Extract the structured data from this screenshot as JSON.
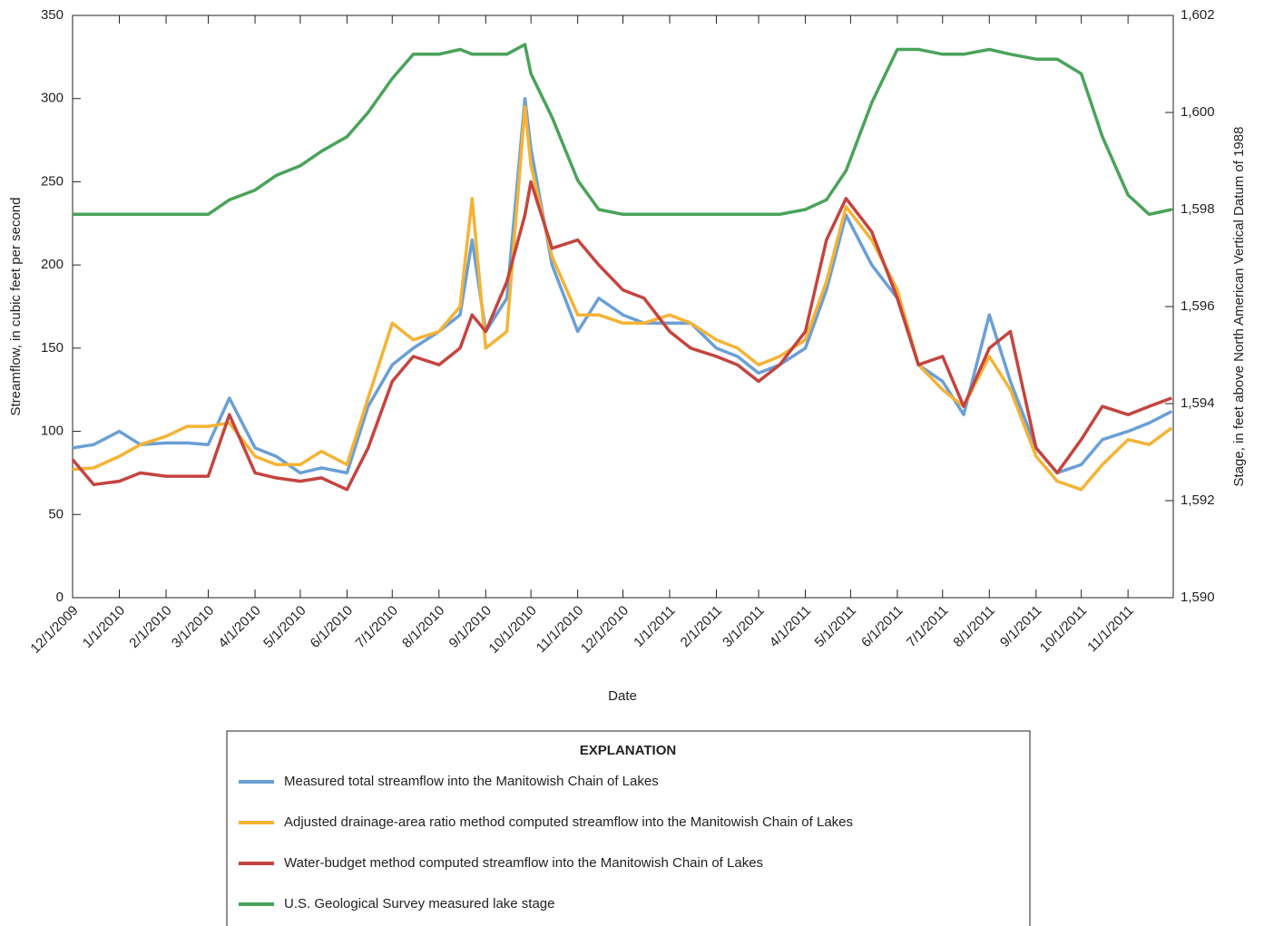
{
  "chart_data": {
    "type": "line",
    "xlabel": "Date",
    "ylabel": "Streamflow, in cubic feet per second",
    "y2label": "Stage, in feet above North American Vertical Datum of 1988",
    "legend_title": "EXPLANATION",
    "legend": "bottom",
    "x": [
      "12/1/2009",
      "12/15/2009",
      "1/1/2010",
      "1/15/2010",
      "2/1/2010",
      "2/15/2010",
      "3/1/2010",
      "3/15/2010",
      "4/1/2010",
      "4/15/2010",
      "5/1/2010",
      "5/15/2010",
      "6/1/2010",
      "6/15/2010",
      "7/1/2010",
      "7/15/2010",
      "8/1/2010",
      "8/15/2010",
      "8/23/2010",
      "9/1/2010",
      "9/15/2010",
      "9/27/2010",
      "10/1/2010",
      "10/15/2010",
      "11/1/2010",
      "11/15/2010",
      "12/1/2010",
      "12/15/2010",
      "1/1/2011",
      "1/15/2011",
      "2/1/2011",
      "2/15/2011",
      "3/1/2011",
      "3/15/2011",
      "4/1/2011",
      "4/15/2011",
      "4/28/2011",
      "5/15/2011",
      "6/1/2011",
      "6/15/2011",
      "7/1/2011",
      "7/15/2011",
      "8/1/2011",
      "8/15/2011",
      "9/1/2011",
      "9/15/2011",
      "10/1/2011",
      "10/15/2011",
      "11/1/2011",
      "11/15/2011",
      "11/30/2011"
    ],
    "xlim": [
      "12/1/2009",
      "12/1/2011"
    ],
    "xticks": [
      "12/1/2009",
      "1/1/2010",
      "2/1/2010",
      "3/1/2010",
      "4/1/2010",
      "5/1/2010",
      "6/1/2010",
      "7/1/2010",
      "8/1/2010",
      "9/1/2010",
      "10/1/2010",
      "11/1/2010",
      "12/1/2010",
      "1/1/2011",
      "2/1/2011",
      "3/1/2011",
      "4/1/2011",
      "5/1/2011",
      "6/1/2011",
      "7/1/2011",
      "8/1/2011",
      "9/1/2011",
      "10/1/2011",
      "11/1/2011"
    ],
    "ylim": [
      0,
      350
    ],
    "yticks": [
      0,
      50,
      100,
      150,
      200,
      250,
      300,
      350
    ],
    "y2lim": [
      1590,
      1602
    ],
    "y2ticks": [
      {
        "value": 1590,
        "label": "1,590"
      },
      {
        "value": 1592,
        "label": "1,592"
      },
      {
        "value": 1594,
        "label": "1,594"
      },
      {
        "value": 1596,
        "label": "1,596"
      },
      {
        "value": 1598,
        "label": "1,598"
      },
      {
        "value": 1600,
        "label": "1,600"
      },
      {
        "value": 1602,
        "label": "1,602"
      }
    ],
    "series": [
      {
        "name": "Measured total streamflow into the Manitowish Chain of Lakes",
        "color": "#6b9fd6",
        "values": [
          90,
          92,
          100,
          92,
          93,
          93,
          92,
          120,
          90,
          85,
          75,
          78,
          75,
          115,
          140,
          150,
          160,
          170,
          215,
          160,
          180,
          300,
          270,
          200,
          160,
          180,
          170,
          165,
          165,
          165,
          150,
          145,
          135,
          140,
          150,
          185,
          230,
          200,
          180,
          140,
          130,
          110,
          170,
          130,
          90,
          75,
          80,
          95,
          100,
          105,
          112
        ]
      },
      {
        "name": "Adjusted drainage-area ratio method computed streamflow into the Manitowish Chain of Lakes",
        "color": "#f5b335",
        "values": [
          77,
          78,
          85,
          92,
          97,
          103,
          103,
          105,
          85,
          80,
          80,
          88,
          80,
          120,
          165,
          155,
          160,
          175,
          240,
          150,
          160,
          295,
          260,
          205,
          170,
          170,
          165,
          165,
          170,
          165,
          155,
          150,
          140,
          145,
          155,
          190,
          235,
          215,
          185,
          140,
          125,
          115,
          145,
          125,
          85,
          70,
          65,
          80,
          95,
          92,
          102
        ]
      },
      {
        "name": "Water-budget method computed streamflow into the Manitowish Chain of Lakes",
        "color": "#c4443f",
        "values": [
          83,
          68,
          70,
          75,
          73,
          73,
          73,
          110,
          75,
          72,
          70,
          72,
          65,
          90,
          130,
          145,
          140,
          150,
          170,
          160,
          190,
          230,
          250,
          210,
          215,
          200,
          185,
          180,
          160,
          150,
          145,
          140,
          130,
          140,
          160,
          215,
          240,
          220,
          180,
          140,
          145,
          115,
          150,
          160,
          90,
          75,
          95,
          115,
          110,
          115,
          120
        ]
      },
      {
        "name": "U.S. Geological Survey measured lake stage",
        "color": "#4aa35a",
        "axis": "y2",
        "values": [
          1597.9,
          1597.9,
          1597.9,
          1597.9,
          1597.9,
          1597.9,
          1597.9,
          1598.2,
          1598.4,
          1598.7,
          1598.9,
          1599.2,
          1599.5,
          1600.0,
          1600.7,
          1601.2,
          1601.2,
          1601.3,
          1601.2,
          1601.2,
          1601.2,
          1601.4,
          1600.8,
          1599.9,
          1598.6,
          1598.0,
          1597.9,
          1597.9,
          1597.9,
          1597.9,
          1597.9,
          1597.9,
          1597.9,
          1597.9,
          1598.0,
          1598.2,
          1598.8,
          1600.2,
          1601.3,
          1601.3,
          1601.2,
          1601.2,
          1601.3,
          1601.2,
          1601.1,
          1601.1,
          1600.8,
          1599.5,
          1598.3,
          1597.9,
          1598.0
        ]
      }
    ]
  }
}
